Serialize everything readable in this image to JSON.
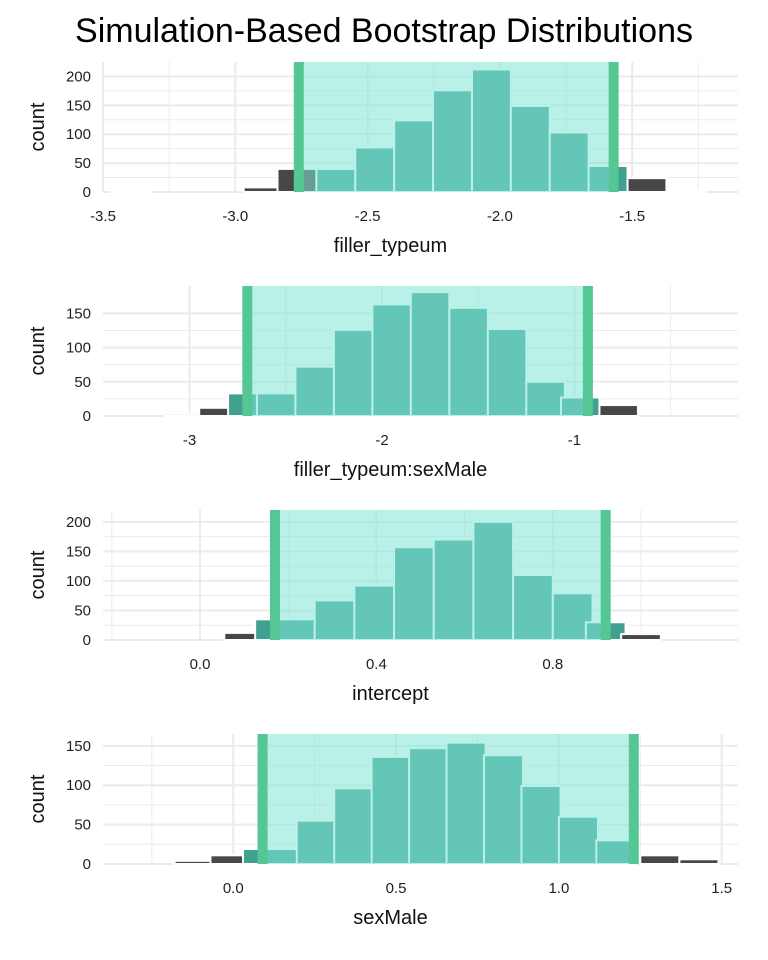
{
  "title": "Simulation-Based Bootstrap Distributions",
  "colors": {
    "ci_fill": "#7fe6d5",
    "ci_edge": "#55c794",
    "bar_in": "#40a191",
    "bar_out": "#474747",
    "grid": "#ebebeb"
  },
  "chart_data": [
    {
      "type": "bar",
      "xlabel": "filler_typeum",
      "ylabel": "count",
      "xlim": [
        -3.5,
        -1.1
      ],
      "ylim": [
        0,
        225
      ],
      "xticks": [
        -3.5,
        -3.0,
        -2.5,
        -2.0,
        -1.5
      ],
      "xtick_labels": [
        "-3.5",
        "-3.0",
        "-2.5",
        "-2.0",
        "-1.5"
      ],
      "yticks": [
        0,
        50,
        100,
        150,
        200
      ],
      "ci": [
        -2.76,
        -1.57
      ],
      "bin_width": 0.147,
      "bins": [
        {
          "x": -3.395,
          "count": 1
        },
        {
          "x": -2.895,
          "count": 8
        },
        {
          "x": -2.767,
          "count": 40
        },
        {
          "x": -2.62,
          "count": 40
        },
        {
          "x": -2.473,
          "count": 77
        },
        {
          "x": -2.326,
          "count": 124
        },
        {
          "x": -2.179,
          "count": 176
        },
        {
          "x": -2.032,
          "count": 212
        },
        {
          "x": -1.885,
          "count": 149
        },
        {
          "x": -1.738,
          "count": 103
        },
        {
          "x": -1.591,
          "count": 45
        },
        {
          "x": -1.444,
          "count": 24
        },
        {
          "x": -1.297,
          "count": 3
        }
      ]
    },
    {
      "type": "bar",
      "xlabel": "filler_typeum:sexMale",
      "ylabel": "count",
      "xlim": [
        -3.45,
        -0.15
      ],
      "ylim": [
        0,
        190
      ],
      "xticks": [
        -3,
        -2,
        -1
      ],
      "xtick_labels": [
        "-3",
        "-2",
        "-1"
      ],
      "yticks": [
        0,
        50,
        100,
        150
      ],
      "ci": [
        -2.7,
        -0.93
      ],
      "bin_width": 0.2,
      "bins": [
        {
          "x": -3.03,
          "count": 3
        },
        {
          "x": -2.85,
          "count": 12
        },
        {
          "x": -2.7,
          "count": 33
        },
        {
          "x": -2.55,
          "count": 33
        },
        {
          "x": -2.35,
          "count": 72
        },
        {
          "x": -2.15,
          "count": 126
        },
        {
          "x": -1.95,
          "count": 163
        },
        {
          "x": -1.75,
          "count": 181
        },
        {
          "x": -1.55,
          "count": 158
        },
        {
          "x": -1.35,
          "count": 127
        },
        {
          "x": -1.15,
          "count": 50
        },
        {
          "x": -0.97,
          "count": 27
        },
        {
          "x": -0.77,
          "count": 16
        }
      ]
    },
    {
      "type": "bar",
      "xlabel": "intercept",
      "ylabel": "count",
      "xlim": [
        -0.22,
        1.22
      ],
      "ylim": [
        0,
        220
      ],
      "xticks": [
        0.0,
        0.4,
        0.8
      ],
      "xtick_labels": [
        "0.0",
        "0.4",
        "0.8"
      ],
      "yticks": [
        0,
        50,
        100,
        150,
        200
      ],
      "ci": [
        0.17,
        0.92
      ],
      "bin_width": 0.09,
      "bins": [
        {
          "x": 0.1,
          "count": 12
        },
        {
          "x": 0.17,
          "count": 35
        },
        {
          "x": 0.215,
          "count": 35
        },
        {
          "x": 0.305,
          "count": 67
        },
        {
          "x": 0.395,
          "count": 92
        },
        {
          "x": 0.485,
          "count": 157
        },
        {
          "x": 0.575,
          "count": 170
        },
        {
          "x": 0.665,
          "count": 200
        },
        {
          "x": 0.755,
          "count": 110
        },
        {
          "x": 0.845,
          "count": 79
        },
        {
          "x": 0.92,
          "count": 30
        },
        {
          "x": 1.0,
          "count": 10
        }
      ]
    },
    {
      "type": "bar",
      "xlabel": "sexMale",
      "ylabel": "count",
      "xlim": [
        -0.4,
        1.55
      ],
      "ylim": [
        0,
        165
      ],
      "xticks": [
        0.0,
        0.5,
        1.0,
        1.5
      ],
      "xtick_labels": [
        "0.0",
        "0.5",
        "1.0",
        "1.5"
      ],
      "yticks": [
        0,
        50,
        100,
        150
      ],
      "ci": [
        0.09,
        1.23
      ],
      "bin_width": 0.12,
      "bins": [
        {
          "x": -0.12,
          "count": 4
        },
        {
          "x": -0.01,
          "count": 11
        },
        {
          "x": 0.09,
          "count": 19
        },
        {
          "x": 0.14,
          "count": 19
        },
        {
          "x": 0.255,
          "count": 55
        },
        {
          "x": 0.37,
          "count": 96
        },
        {
          "x": 0.485,
          "count": 136
        },
        {
          "x": 0.6,
          "count": 147
        },
        {
          "x": 0.715,
          "count": 154
        },
        {
          "x": 0.83,
          "count": 138
        },
        {
          "x": 0.945,
          "count": 99
        },
        {
          "x": 1.06,
          "count": 60
        },
        {
          "x": 1.175,
          "count": 30
        },
        {
          "x": 1.31,
          "count": 11
        },
        {
          "x": 1.43,
          "count": 6
        }
      ]
    }
  ]
}
